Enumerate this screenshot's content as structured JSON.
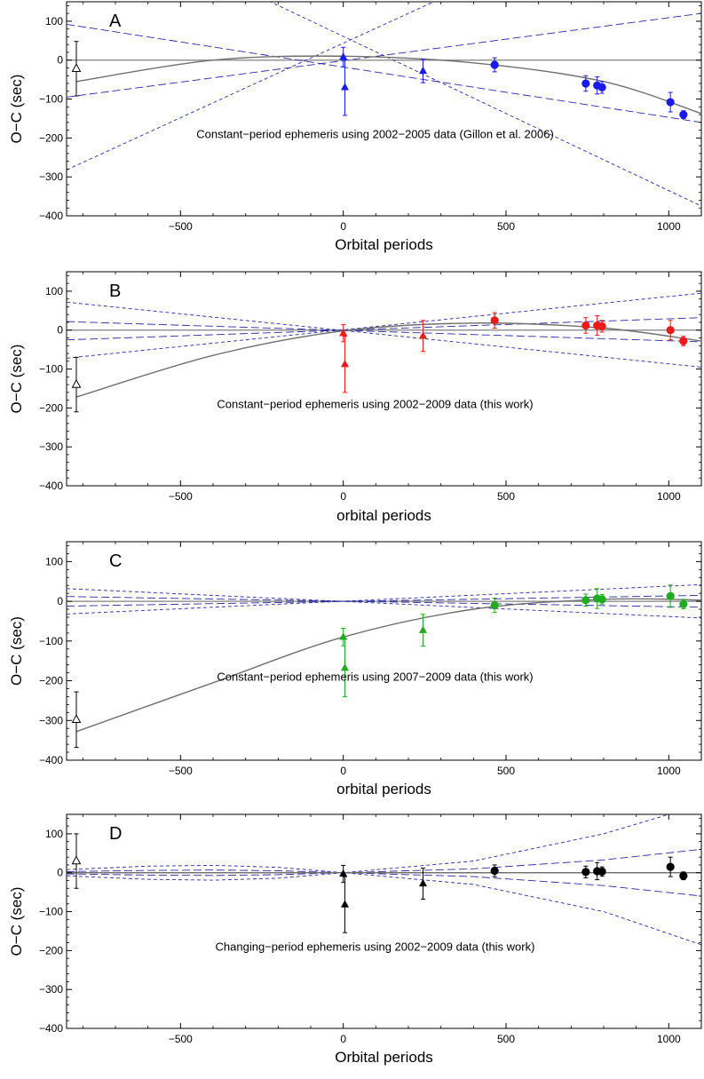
{
  "chart_data": [
    {
      "type": "scatter",
      "panel_label": "A",
      "annotation": "Constant−period ephemeris using 2002−2005 data (Gillon et al. 2006)",
      "xlabel": "Orbital periods",
      "ylabel": "O−C (sec)",
      "xlim": [
        -850,
        1100
      ],
      "ylim": [
        -400,
        150
      ],
      "xticks": [
        "−500",
        "0",
        "500",
        "1000"
      ],
      "yticks": [
        "−400",
        "−300",
        "−200",
        "−100",
        "0",
        "100"
      ],
      "color": "#1a1aee",
      "points": [
        {
          "x": -820,
          "y": -22,
          "err": 70,
          "marker": "open-triangle"
        },
        {
          "x": 0,
          "y": 8,
          "err": 25,
          "marker": "triangle"
        },
        {
          "x": 5,
          "y": -70,
          "err": 72,
          "marker": "triangle"
        },
        {
          "x": 245,
          "y": -28,
          "err": 30,
          "marker": "triangle"
        },
        {
          "x": 465,
          "y": -12,
          "err": 18,
          "marker": "circle"
        },
        {
          "x": 745,
          "y": -60,
          "err": 20,
          "marker": "circle"
        },
        {
          "x": 780,
          "y": -65,
          "err": 22,
          "marker": "circle"
        },
        {
          "x": 795,
          "y": -70,
          "err": 15,
          "marker": "circle"
        },
        {
          "x": 1005,
          "y": -108,
          "err": 25,
          "marker": "circle"
        },
        {
          "x": 1045,
          "y": -140,
          "err": 10,
          "marker": "circle"
        }
      ],
      "fit_curve": {
        "x": [
          -820,
          -400,
          0,
          400,
          800,
          1100
        ],
        "y": [
          -55,
          0,
          10,
          -7,
          -55,
          -137
        ]
      },
      "bounds_1sigma": [
        {
          "x": [
            -850,
            1100
          ],
          "y": [
            -95,
            120
          ]
        },
        {
          "x": [
            -850,
            1100
          ],
          "y": [
            92,
            -160
          ]
        }
      ],
      "bounds_3sigma": [
        {
          "x": [
            -850,
            1100
          ],
          "y": [
            -282,
            465
          ]
        },
        {
          "x": [
            -850,
            1100
          ],
          "y": [
            398,
            -375
          ]
        }
      ]
    },
    {
      "type": "scatter",
      "panel_label": "B",
      "annotation": "Constant−period ephemeris using 2002−2009 data (this work)",
      "xlabel": "orbital periods",
      "ylabel": "O−C (sec)",
      "xlim": [
        -850,
        1100
      ],
      "ylim": [
        -400,
        150
      ],
      "xticks": [
        "−500",
        "0",
        "500",
        "1000"
      ],
      "yticks": [
        "−400",
        "−300",
        "−200",
        "−100",
        "0",
        "100"
      ],
      "color": "#ee1a1a",
      "points": [
        {
          "x": -820,
          "y": -140,
          "err": 70,
          "marker": "open-triangle"
        },
        {
          "x": 0,
          "y": -8,
          "err": 22,
          "marker": "triangle"
        },
        {
          "x": 5,
          "y": -88,
          "err": 72,
          "marker": "triangle"
        },
        {
          "x": 245,
          "y": -15,
          "err": 40,
          "marker": "triangle"
        },
        {
          "x": 465,
          "y": 25,
          "err": 20,
          "marker": "circle"
        },
        {
          "x": 745,
          "y": 12,
          "err": 20,
          "marker": "circle"
        },
        {
          "x": 780,
          "y": 12,
          "err": 25,
          "marker": "circle"
        },
        {
          "x": 795,
          "y": 10,
          "err": 15,
          "marker": "circle"
        },
        {
          "x": 1005,
          "y": 0,
          "err": 25,
          "marker": "circle"
        },
        {
          "x": 1045,
          "y": -28,
          "err": 12,
          "marker": "circle"
        }
      ],
      "fit_curve": {
        "x": [
          -820,
          -400,
          0,
          400,
          800,
          1100
        ],
        "y": [
          -172,
          -65,
          -2,
          18,
          5,
          -28
        ]
      },
      "bounds_1sigma": [
        {
          "x": [
            -850,
            1100
          ],
          "y": [
            -25,
            32
          ]
        },
        {
          "x": [
            -850,
            1100
          ],
          "y": [
            22,
            -30
          ]
        }
      ],
      "bounds_3sigma": [
        {
          "x": [
            -850,
            1100
          ],
          "y": [
            -72,
            95
          ]
        },
        {
          "x": [
            -850,
            1100
          ],
          "y": [
            72,
            -95
          ]
        }
      ]
    },
    {
      "type": "scatter",
      "panel_label": "C",
      "annotation": "Constant−period ephemeris using 2007−2009 data (this work)",
      "xlabel": "orbital periods",
      "ylabel": "O−C (sec)",
      "xlim": [
        -850,
        1100
      ],
      "ylim": [
        -400,
        150
      ],
      "xticks": [
        "−500",
        "0",
        "500",
        "1000"
      ],
      "yticks": [
        "−400",
        "−300",
        "−200",
        "−100",
        "0",
        "100"
      ],
      "color": "#22aa22",
      "points": [
        {
          "x": -820,
          "y": -298,
          "err": 70,
          "marker": "open-triangle"
        },
        {
          "x": 0,
          "y": -90,
          "err": 22,
          "marker": "triangle"
        },
        {
          "x": 5,
          "y": -168,
          "err": 72,
          "marker": "triangle"
        },
        {
          "x": 245,
          "y": -73,
          "err": 40,
          "marker": "triangle"
        },
        {
          "x": 465,
          "y": -10,
          "err": 18,
          "marker": "circle"
        },
        {
          "x": 745,
          "y": 3,
          "err": 15,
          "marker": "circle"
        },
        {
          "x": 780,
          "y": 7,
          "err": 25,
          "marker": "circle"
        },
        {
          "x": 795,
          "y": 5,
          "err": 12,
          "marker": "circle"
        },
        {
          "x": 1005,
          "y": 13,
          "err": 28,
          "marker": "circle"
        },
        {
          "x": 1045,
          "y": -7,
          "err": 12,
          "marker": "circle"
        }
      ],
      "fit_curve": {
        "x": [
          -820,
          -400,
          0,
          400,
          800,
          1100
        ],
        "y": [
          -328,
          -205,
          -90,
          -20,
          5,
          3
        ]
      },
      "bounds_1sigma": [
        {
          "x": [
            -850,
            1100
          ],
          "y": [
            -12,
            15
          ]
        },
        {
          "x": [
            -850,
            1100
          ],
          "y": [
            12,
            -15
          ]
        }
      ],
      "bounds_3sigma": [
        {
          "x": [
            -850,
            1100
          ],
          "y": [
            -32,
            42
          ]
        },
        {
          "x": [
            -850,
            1100
          ],
          "y": [
            32,
            -42
          ]
        }
      ]
    },
    {
      "type": "scatter",
      "panel_label": "D",
      "annotation": "Changing−period ephemeris using 2002−2009 data (this work)",
      "xlabel": "Orbital periods",
      "ylabel": "O−C (sec)",
      "xlim": [
        -850,
        1100
      ],
      "ylim": [
        -400,
        150
      ],
      "xticks": [
        "−500",
        "0",
        "500",
        "1000"
      ],
      "yticks": [
        "−400",
        "−300",
        "−200",
        "−100",
        "0",
        "100"
      ],
      "color": "#000000",
      "points": [
        {
          "x": -820,
          "y": 30,
          "err": 70,
          "marker": "open-triangle"
        },
        {
          "x": 0,
          "y": -3,
          "err": 22,
          "marker": "triangle"
        },
        {
          "x": 5,
          "y": -82,
          "err": 72,
          "marker": "triangle"
        },
        {
          "x": 245,
          "y": -28,
          "err": 40,
          "marker": "triangle"
        },
        {
          "x": 465,
          "y": 5,
          "err": 15,
          "marker": "circle"
        },
        {
          "x": 745,
          "y": 2,
          "err": 15,
          "marker": "circle"
        },
        {
          "x": 780,
          "y": 4,
          "err": 22,
          "marker": "circle"
        },
        {
          "x": 795,
          "y": 3,
          "err": 12,
          "marker": "circle"
        },
        {
          "x": 1005,
          "y": 15,
          "err": 25,
          "marker": "circle"
        },
        {
          "x": 1045,
          "y": -8,
          "err": 10,
          "marker": "circle"
        }
      ],
      "fit_curve": {
        "x": [
          -850,
          1100
        ],
        "y": [
          0,
          0
        ]
      },
      "bounds_1sigma": [
        {
          "x": [
            -850,
            -600,
            -400,
            -200,
            0,
            400,
            800,
            1100
          ],
          "y": [
            3,
            6,
            7,
            5,
            0,
            10,
            33,
            60
          ]
        },
        {
          "x": [
            -850,
            -600,
            -400,
            -200,
            0,
            400,
            800,
            1100
          ],
          "y": [
            -3,
            -6,
            -7,
            -5,
            0,
            -10,
            -33,
            -60
          ]
        }
      ],
      "bounds_3sigma": [
        {
          "x": [
            -850,
            -600,
            -400,
            -200,
            0,
            400,
            800,
            1000
          ],
          "y": [
            8,
            17,
            19,
            14,
            0,
            30,
            100,
            150
          ]
        },
        {
          "x": [
            -850,
            -600,
            -400,
            -200,
            0,
            400,
            800,
            1100
          ],
          "y": [
            -8,
            -17,
            -19,
            -14,
            0,
            -30,
            -100,
            -185
          ]
        }
      ]
    }
  ]
}
